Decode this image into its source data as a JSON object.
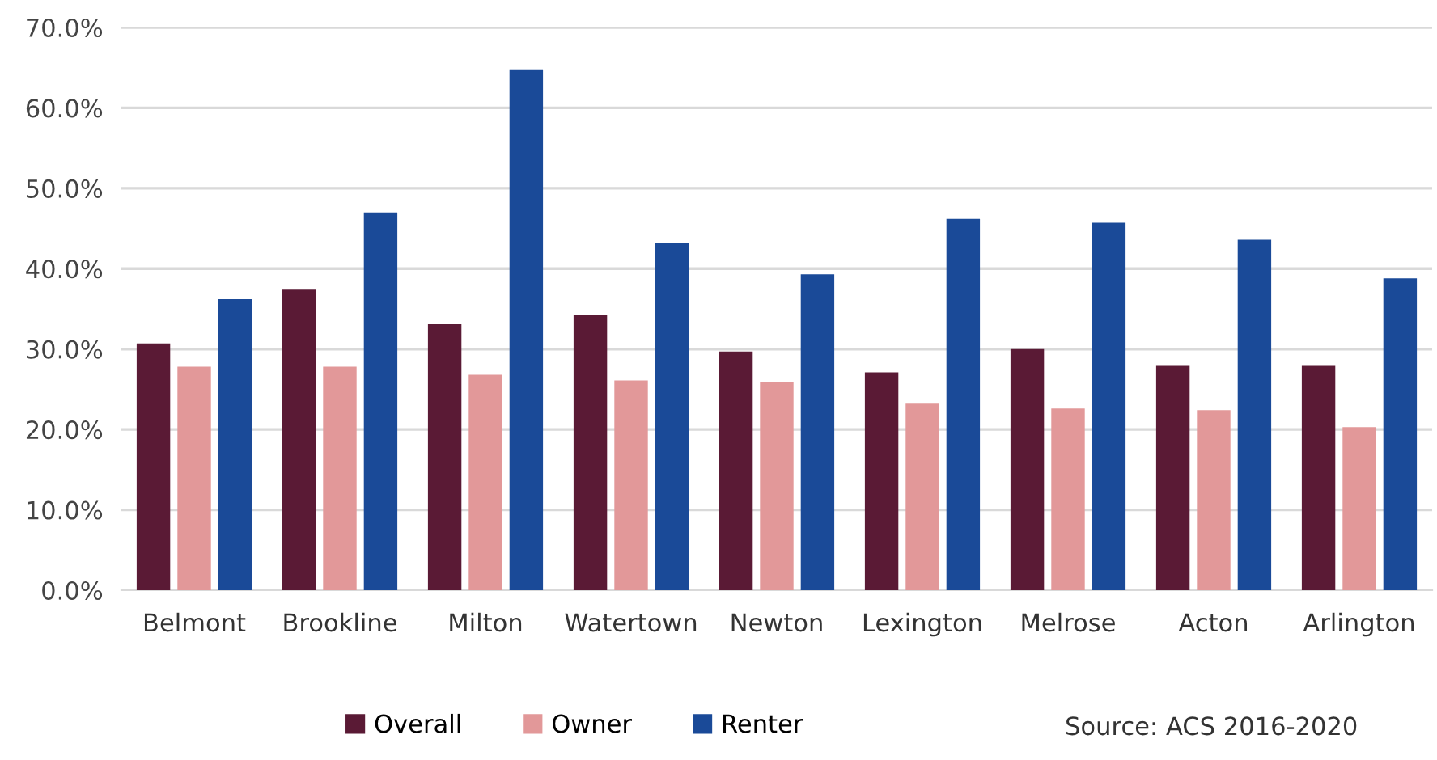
{
  "chart_data": {
    "type": "bar",
    "categories": [
      "Belmont",
      "Brookline",
      "Milton",
      "Watertown",
      "Newton",
      "Lexington",
      "Melrose",
      "Acton",
      "Arlington"
    ],
    "series": [
      {
        "name": "Overall",
        "color": "#5a1a35",
        "values": [
          30.7,
          37.4,
          33.1,
          34.3,
          29.7,
          27.1,
          30.0,
          27.9,
          27.9
        ]
      },
      {
        "name": "Owner",
        "color": "#e29899",
        "values": [
          27.8,
          27.8,
          26.8,
          26.1,
          25.9,
          23.2,
          22.6,
          22.4,
          20.3
        ]
      },
      {
        "name": "Renter",
        "color": "#1a4a98",
        "values": [
          36.2,
          47.0,
          64.8,
          43.2,
          39.3,
          46.2,
          45.7,
          43.6,
          38.8
        ]
      }
    ],
    "ylim": [
      0,
      70
    ],
    "yticks": [
      {
        "value": 0,
        "label": "0.0%"
      },
      {
        "value": 10,
        "label": "10.0%"
      },
      {
        "value": 20,
        "label": "20.0%"
      },
      {
        "value": 30,
        "label": "30.0%"
      },
      {
        "value": 40,
        "label": "40.0%"
      },
      {
        "value": 50,
        "label": "50.0%"
      },
      {
        "value": 60,
        "label": "60.0%"
      },
      {
        "value": 70,
        "label": "70.0%"
      }
    ],
    "grid": "y",
    "legend": "bottom",
    "annotations": [
      "Source: ACS 2016-2020"
    ]
  }
}
